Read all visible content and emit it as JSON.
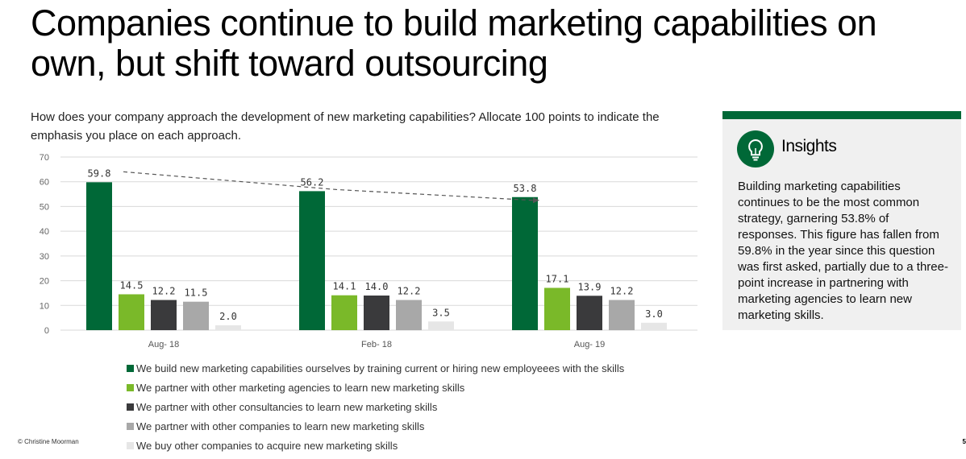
{
  "title": "Companies continue to build marketing capabilities on own, but shift toward outsourcing",
  "question": "How does your company approach the development of new marketing capabilities? Allocate 100 points to indicate the emphasis you place on each approach.",
  "footer": "© Christine Moorman",
  "page_number": "5",
  "insights": {
    "icon": "lightbulb-icon",
    "title": "Insights",
    "text": "Building marketing capabilities continues to be the most common strategy, garnering 53.8% of responses. This figure has fallen from 59.8% in the year since this question was first asked, partially due to a three-point increase in partnering with marketing agencies to learn new marketing skills.",
    "accent_color": "#006837"
  },
  "chart_data": {
    "type": "bar",
    "categories": [
      "Aug- 18",
      "Feb- 18",
      "Aug- 19"
    ],
    "ylim": [
      0,
      70
    ],
    "yticks": [
      0,
      10,
      20,
      30,
      40,
      50,
      60,
      70
    ],
    "grid": true,
    "legend_position": "bottom",
    "trend_line": {
      "series_index": 0,
      "style": "dashed",
      "arrow": true
    },
    "series": [
      {
        "name": "We build new marketing capabilities ourselves by training current or hiring new employeees with the skills",
        "color": "#006837",
        "values": [
          59.8,
          56.2,
          53.8
        ],
        "labels": [
          "59.8",
          "56.2",
          "53.8"
        ]
      },
      {
        "name": "We partner with other marketing agencies to learn new marketing skills",
        "color": "#7ab929",
        "values": [
          14.5,
          14.1,
          17.1
        ],
        "labels": [
          "14.5",
          "14.1",
          "17.1"
        ]
      },
      {
        "name": "We partner with other consultancies to learn new marketing skills",
        "color": "#3a3a3c",
        "values": [
          12.2,
          14.0,
          13.9
        ],
        "labels": [
          "12.2",
          "14.0",
          "13.9"
        ]
      },
      {
        "name": "We partner with other companies to learn new marketing skills",
        "color": "#a8a8a8",
        "values": [
          11.5,
          12.2,
          12.2
        ],
        "labels": [
          "11.5",
          "12.2",
          "12.2"
        ]
      },
      {
        "name": "We buy other companies to acquire new marketing skills",
        "color": "#e6e6e6",
        "values": [
          2.0,
          3.5,
          3.0
        ],
        "labels": [
          "2.0",
          "3.5",
          "3.0"
        ]
      }
    ]
  }
}
